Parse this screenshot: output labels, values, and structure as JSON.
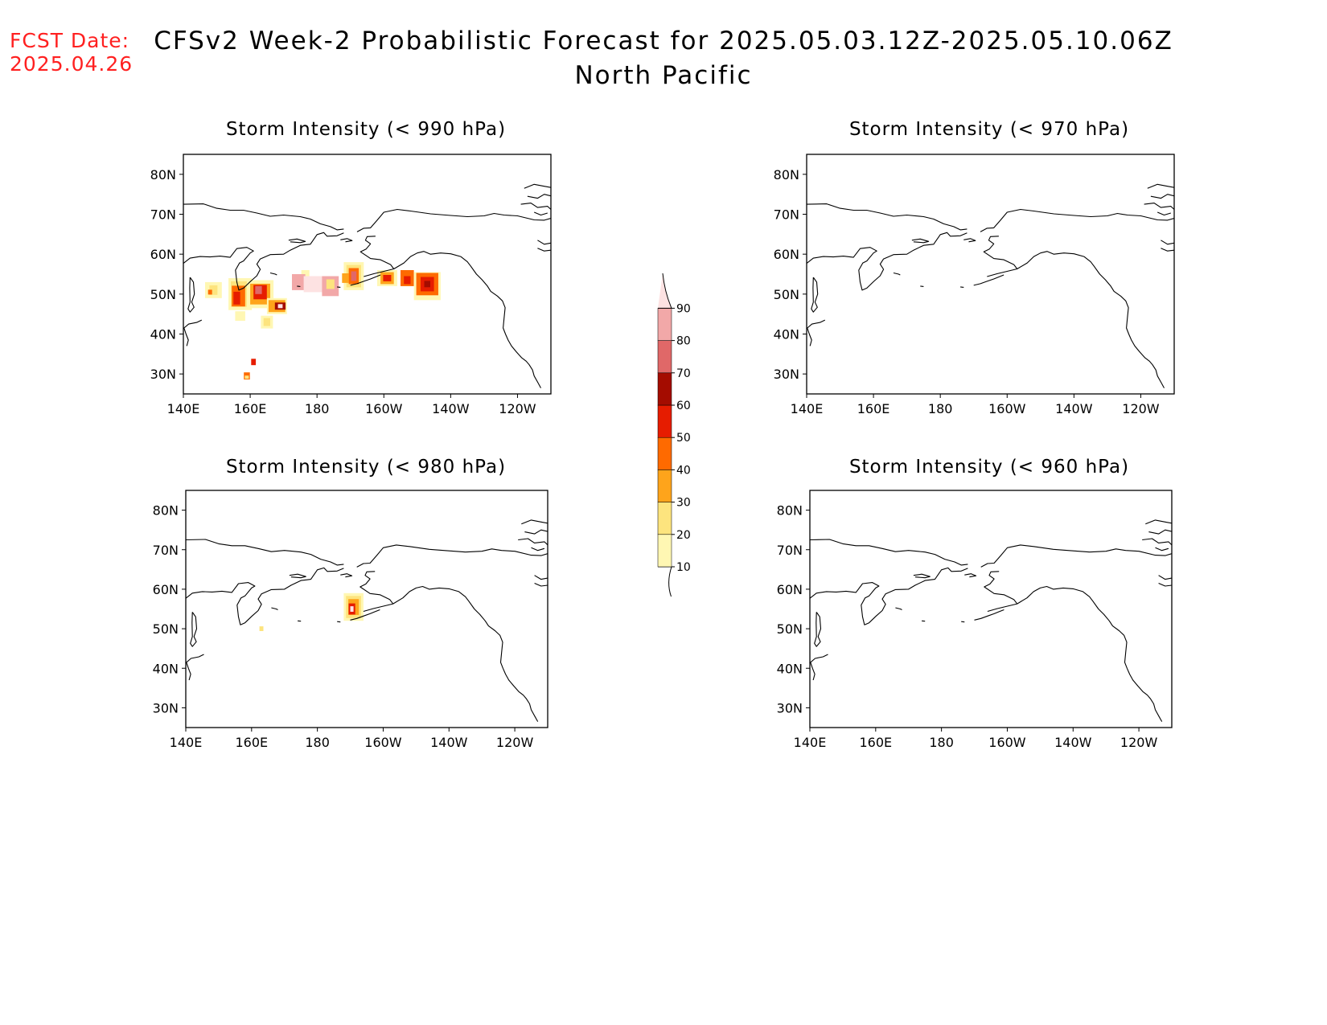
{
  "fcst": {
    "line1": "FCST Date:",
    "line2": "2025.04.26"
  },
  "title": {
    "line1": "CFSv2 Week-2 Probabilistic Forecast for 2025.05.03.12Z-2025.05.10.06Z",
    "line2": "North Pacific"
  },
  "axes": {
    "lat_labels": [
      "80N",
      "70N",
      "60N",
      "50N",
      "40N",
      "30N"
    ],
    "lon_labels": [
      "140E",
      "160E",
      "180",
      "160W",
      "140W",
      "120W"
    ]
  },
  "panels": [
    {
      "id": "p990",
      "title": "Storm Intensity (< 990 hPa)",
      "has_data": true
    },
    {
      "id": "p970",
      "title": "Storm Intensity (< 970 hPa)",
      "has_data": false
    },
    {
      "id": "p980",
      "title": "Storm Intensity (< 980 hPa)",
      "has_data": true
    },
    {
      "id": "p960",
      "title": "Storm Intensity (< 960 hPa)",
      "has_data": false
    }
  ],
  "colorbar": {
    "levels": [
      "10",
      "20",
      "30",
      "40",
      "50",
      "60",
      "70",
      "80",
      "90"
    ],
    "colors": [
      "#fff7b3",
      "#fde47e",
      "#fea41b",
      "#fe6a00",
      "#e61c00",
      "#a40c00",
      "#e06868",
      "#f2a8a8",
      "#fde2e2"
    ]
  }
}
